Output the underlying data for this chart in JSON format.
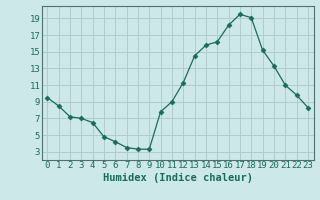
{
  "x": [
    0,
    1,
    2,
    3,
    4,
    5,
    6,
    7,
    8,
    9,
    10,
    11,
    12,
    13,
    14,
    15,
    16,
    17,
    18,
    19,
    20,
    21,
    22,
    23
  ],
  "y": [
    9.5,
    8.5,
    7.2,
    7.0,
    6.5,
    4.8,
    4.2,
    3.5,
    3.3,
    3.3,
    7.8,
    9.0,
    11.3,
    14.5,
    15.8,
    16.2,
    18.2,
    19.5,
    19.1,
    15.2,
    13.3,
    11.0,
    9.8,
    8.3
  ],
  "line_color": "#1a6b5a",
  "marker": "D",
  "marker_size": 2.5,
  "bg_color": "#cce8e8",
  "grid_color": "#b0cccc",
  "axis_color": "#1a6b5a",
  "spine_color": "#507070",
  "xlabel": "Humidex (Indice chaleur)",
  "xlim": [
    -0.5,
    23.5
  ],
  "ylim": [
    2,
    20.5
  ],
  "yticks": [
    3,
    5,
    7,
    9,
    11,
    13,
    15,
    17,
    19
  ],
  "xticks": [
    0,
    1,
    2,
    3,
    4,
    5,
    6,
    7,
    8,
    9,
    10,
    11,
    12,
    13,
    14,
    15,
    16,
    17,
    18,
    19,
    20,
    21,
    22,
    23
  ],
  "xlabel_fontsize": 7.5,
  "tick_fontsize": 6.5
}
